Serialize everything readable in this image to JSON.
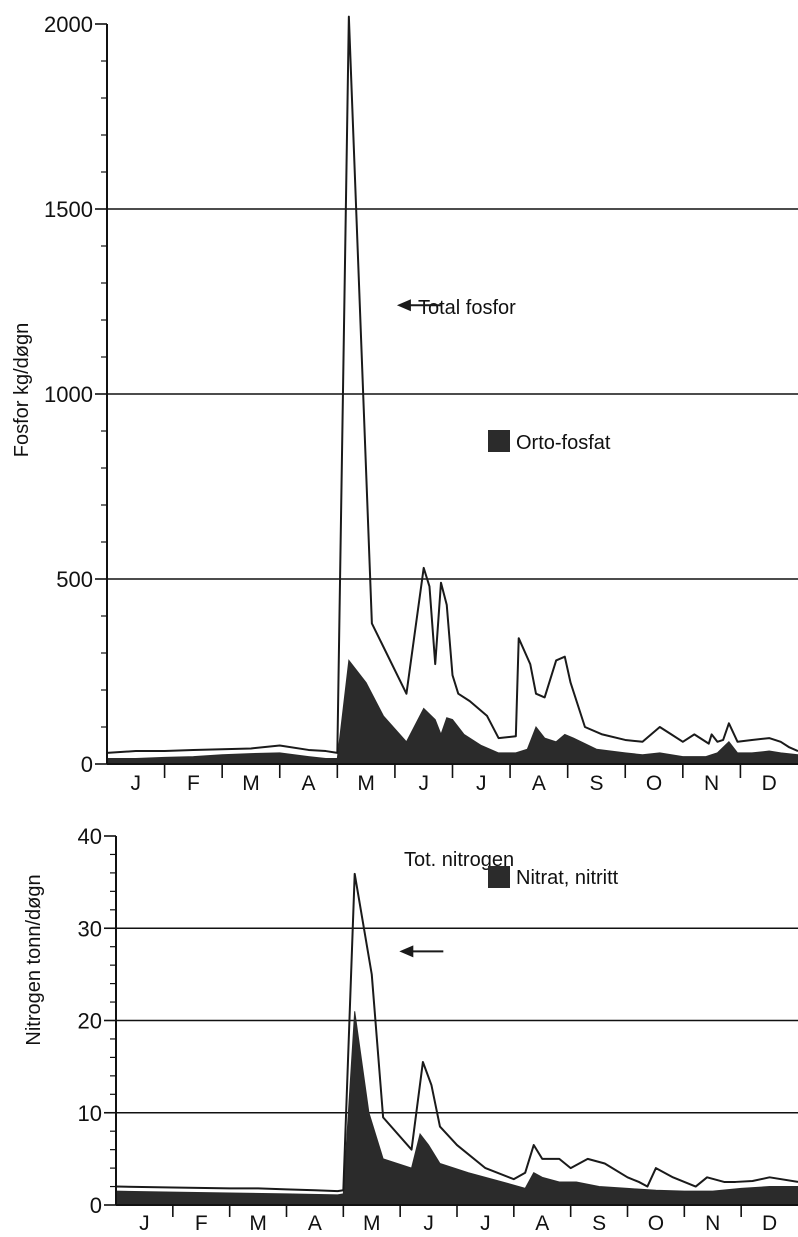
{
  "colors": {
    "background": "#ffffff",
    "line": "#1a1a1a",
    "fill": "#2b2b2b",
    "grid": "#111111"
  },
  "chart_data": [
    {
      "type": "area",
      "ylabel": "Fosfor kg/døgn",
      "ylim": [
        0,
        2000
      ],
      "yticks": [
        "0",
        "500",
        "1000",
        "1500",
        "2000"
      ],
      "xlim": [
        0,
        12
      ],
      "month_labels": [
        "J",
        "F",
        "M",
        "A",
        "M",
        "J",
        "J",
        "A",
        "S",
        "O",
        "N",
        "D"
      ],
      "grid": "horizontal at 500, 1000, 1500",
      "annotations": [
        {
          "text": "Total fosfor",
          "arrow_to": [
            5.0,
            1240
          ]
        },
        {
          "text": "Orto-fosfat",
          "legend_marker": true
        }
      ],
      "series": [
        {
          "name": "Total fosfor",
          "style": "line",
          "x": [
            0.0,
            0.5,
            1.0,
            1.5,
            2.0,
            2.5,
            3.0,
            3.5,
            3.8,
            4.0,
            4.2,
            4.6,
            5.2,
            5.5,
            5.6,
            5.7,
            5.8,
            5.9,
            6.0,
            6.1,
            6.3,
            6.6,
            6.8,
            7.1,
            7.15,
            7.35,
            7.45,
            7.6,
            7.8,
            7.95,
            8.05,
            8.3,
            8.6,
            9.0,
            9.3,
            9.6,
            9.8,
            10.0,
            10.2,
            10.45,
            10.5,
            10.6,
            10.7,
            10.8,
            10.95,
            11.2,
            11.5,
            11.7,
            11.85,
            12.0
          ],
          "y": [
            30,
            35,
            35,
            38,
            40,
            42,
            50,
            38,
            35,
            30,
            2020,
            380,
            190,
            530,
            480,
            270,
            490,
            430,
            240,
            190,
            170,
            130,
            70,
            75,
            340,
            270,
            190,
            180,
            280,
            290,
            220,
            100,
            80,
            65,
            60,
            100,
            80,
            60,
            80,
            55,
            80,
            60,
            65,
            110,
            60,
            65,
            70,
            60,
            45,
            35
          ]
        },
        {
          "name": "Orto-fosfat",
          "style": "filled",
          "x": [
            0.0,
            0.5,
            1.0,
            1.5,
            2.0,
            2.5,
            3.0,
            3.5,
            3.8,
            4.0,
            4.2,
            4.5,
            4.8,
            5.2,
            5.5,
            5.7,
            5.8,
            5.9,
            6.0,
            6.2,
            6.5,
            6.8,
            7.1,
            7.3,
            7.45,
            7.6,
            7.8,
            7.95,
            8.1,
            8.5,
            9.0,
            9.3,
            9.6,
            10.0,
            10.4,
            10.6,
            10.8,
            10.95,
            11.2,
            11.5,
            11.7,
            12.0
          ],
          "y": [
            15,
            15,
            18,
            20,
            25,
            28,
            30,
            20,
            15,
            15,
            280,
            220,
            130,
            60,
            150,
            120,
            80,
            125,
            120,
            80,
            50,
            30,
            30,
            40,
            100,
            70,
            60,
            80,
            70,
            40,
            30,
            25,
            30,
            20,
            20,
            30,
            60,
            30,
            30,
            35,
            30,
            25
          ]
        }
      ]
    },
    {
      "type": "area",
      "ylabel": "Nitrogen tonn/døgn",
      "ylim": [
        0,
        40
      ],
      "yticks": [
        "0",
        "10",
        "20",
        "30",
        "40"
      ],
      "xlim": [
        0,
        12
      ],
      "month_labels": [
        "J",
        "F",
        "M",
        "A",
        "M",
        "J",
        "J",
        "A",
        "S",
        "O",
        "N",
        "D"
      ],
      "grid": "horizontal at 10, 20, 30",
      "annotations": [
        {
          "text": "Tot. nitrogen",
          "arrow_to": [
            4.95,
            27.5
          ]
        },
        {
          "text": "Nitrat, nitritt",
          "legend_marker": true
        }
      ],
      "series": [
        {
          "name": "Tot. nitrogen",
          "style": "line",
          "x": [
            0.0,
            1.0,
            2.0,
            2.5,
            3.0,
            3.5,
            3.9,
            4.0,
            4.2,
            4.5,
            4.7,
            5.2,
            5.4,
            5.55,
            5.7,
            6.0,
            6.5,
            7.0,
            7.2,
            7.35,
            7.5,
            7.8,
            8.0,
            8.3,
            8.6,
            9.0,
            9.2,
            9.35,
            9.5,
            9.8,
            10.0,
            10.2,
            10.4,
            10.7,
            10.9,
            11.2,
            11.5,
            12.0
          ],
          "y": [
            2.0,
            1.9,
            1.8,
            1.8,
            1.7,
            1.6,
            1.5,
            1.6,
            35.9,
            25.0,
            9.5,
            6.0,
            15.5,
            13.0,
            8.5,
            6.5,
            4.0,
            2.8,
            3.5,
            6.5,
            5.0,
            5.0,
            4.0,
            5.0,
            4.5,
            3.0,
            2.5,
            2.0,
            4.0,
            3.0,
            2.5,
            2.0,
            3.0,
            2.5,
            2.5,
            2.6,
            3.0,
            2.5
          ]
        },
        {
          "name": "Nitrat, nitritt",
          "style": "filled",
          "x": [
            0.0,
            1.0,
            2.0,
            3.0,
            3.9,
            4.0,
            4.2,
            4.45,
            4.7,
            5.2,
            5.35,
            5.5,
            5.7,
            6.2,
            6.8,
            7.2,
            7.35,
            7.5,
            7.8,
            8.1,
            8.5,
            9.0,
            9.5,
            10.0,
            10.5,
            11.0,
            11.5,
            12.0
          ],
          "y": [
            1.5,
            1.4,
            1.3,
            1.2,
            1.1,
            1.2,
            21.0,
            10.0,
            5.0,
            4.0,
            7.7,
            6.5,
            4.5,
            3.5,
            2.5,
            1.8,
            3.5,
            3.0,
            2.5,
            2.5,
            2.0,
            1.8,
            1.6,
            1.5,
            1.5,
            1.8,
            2.0,
            2.0
          ]
        }
      ]
    }
  ]
}
